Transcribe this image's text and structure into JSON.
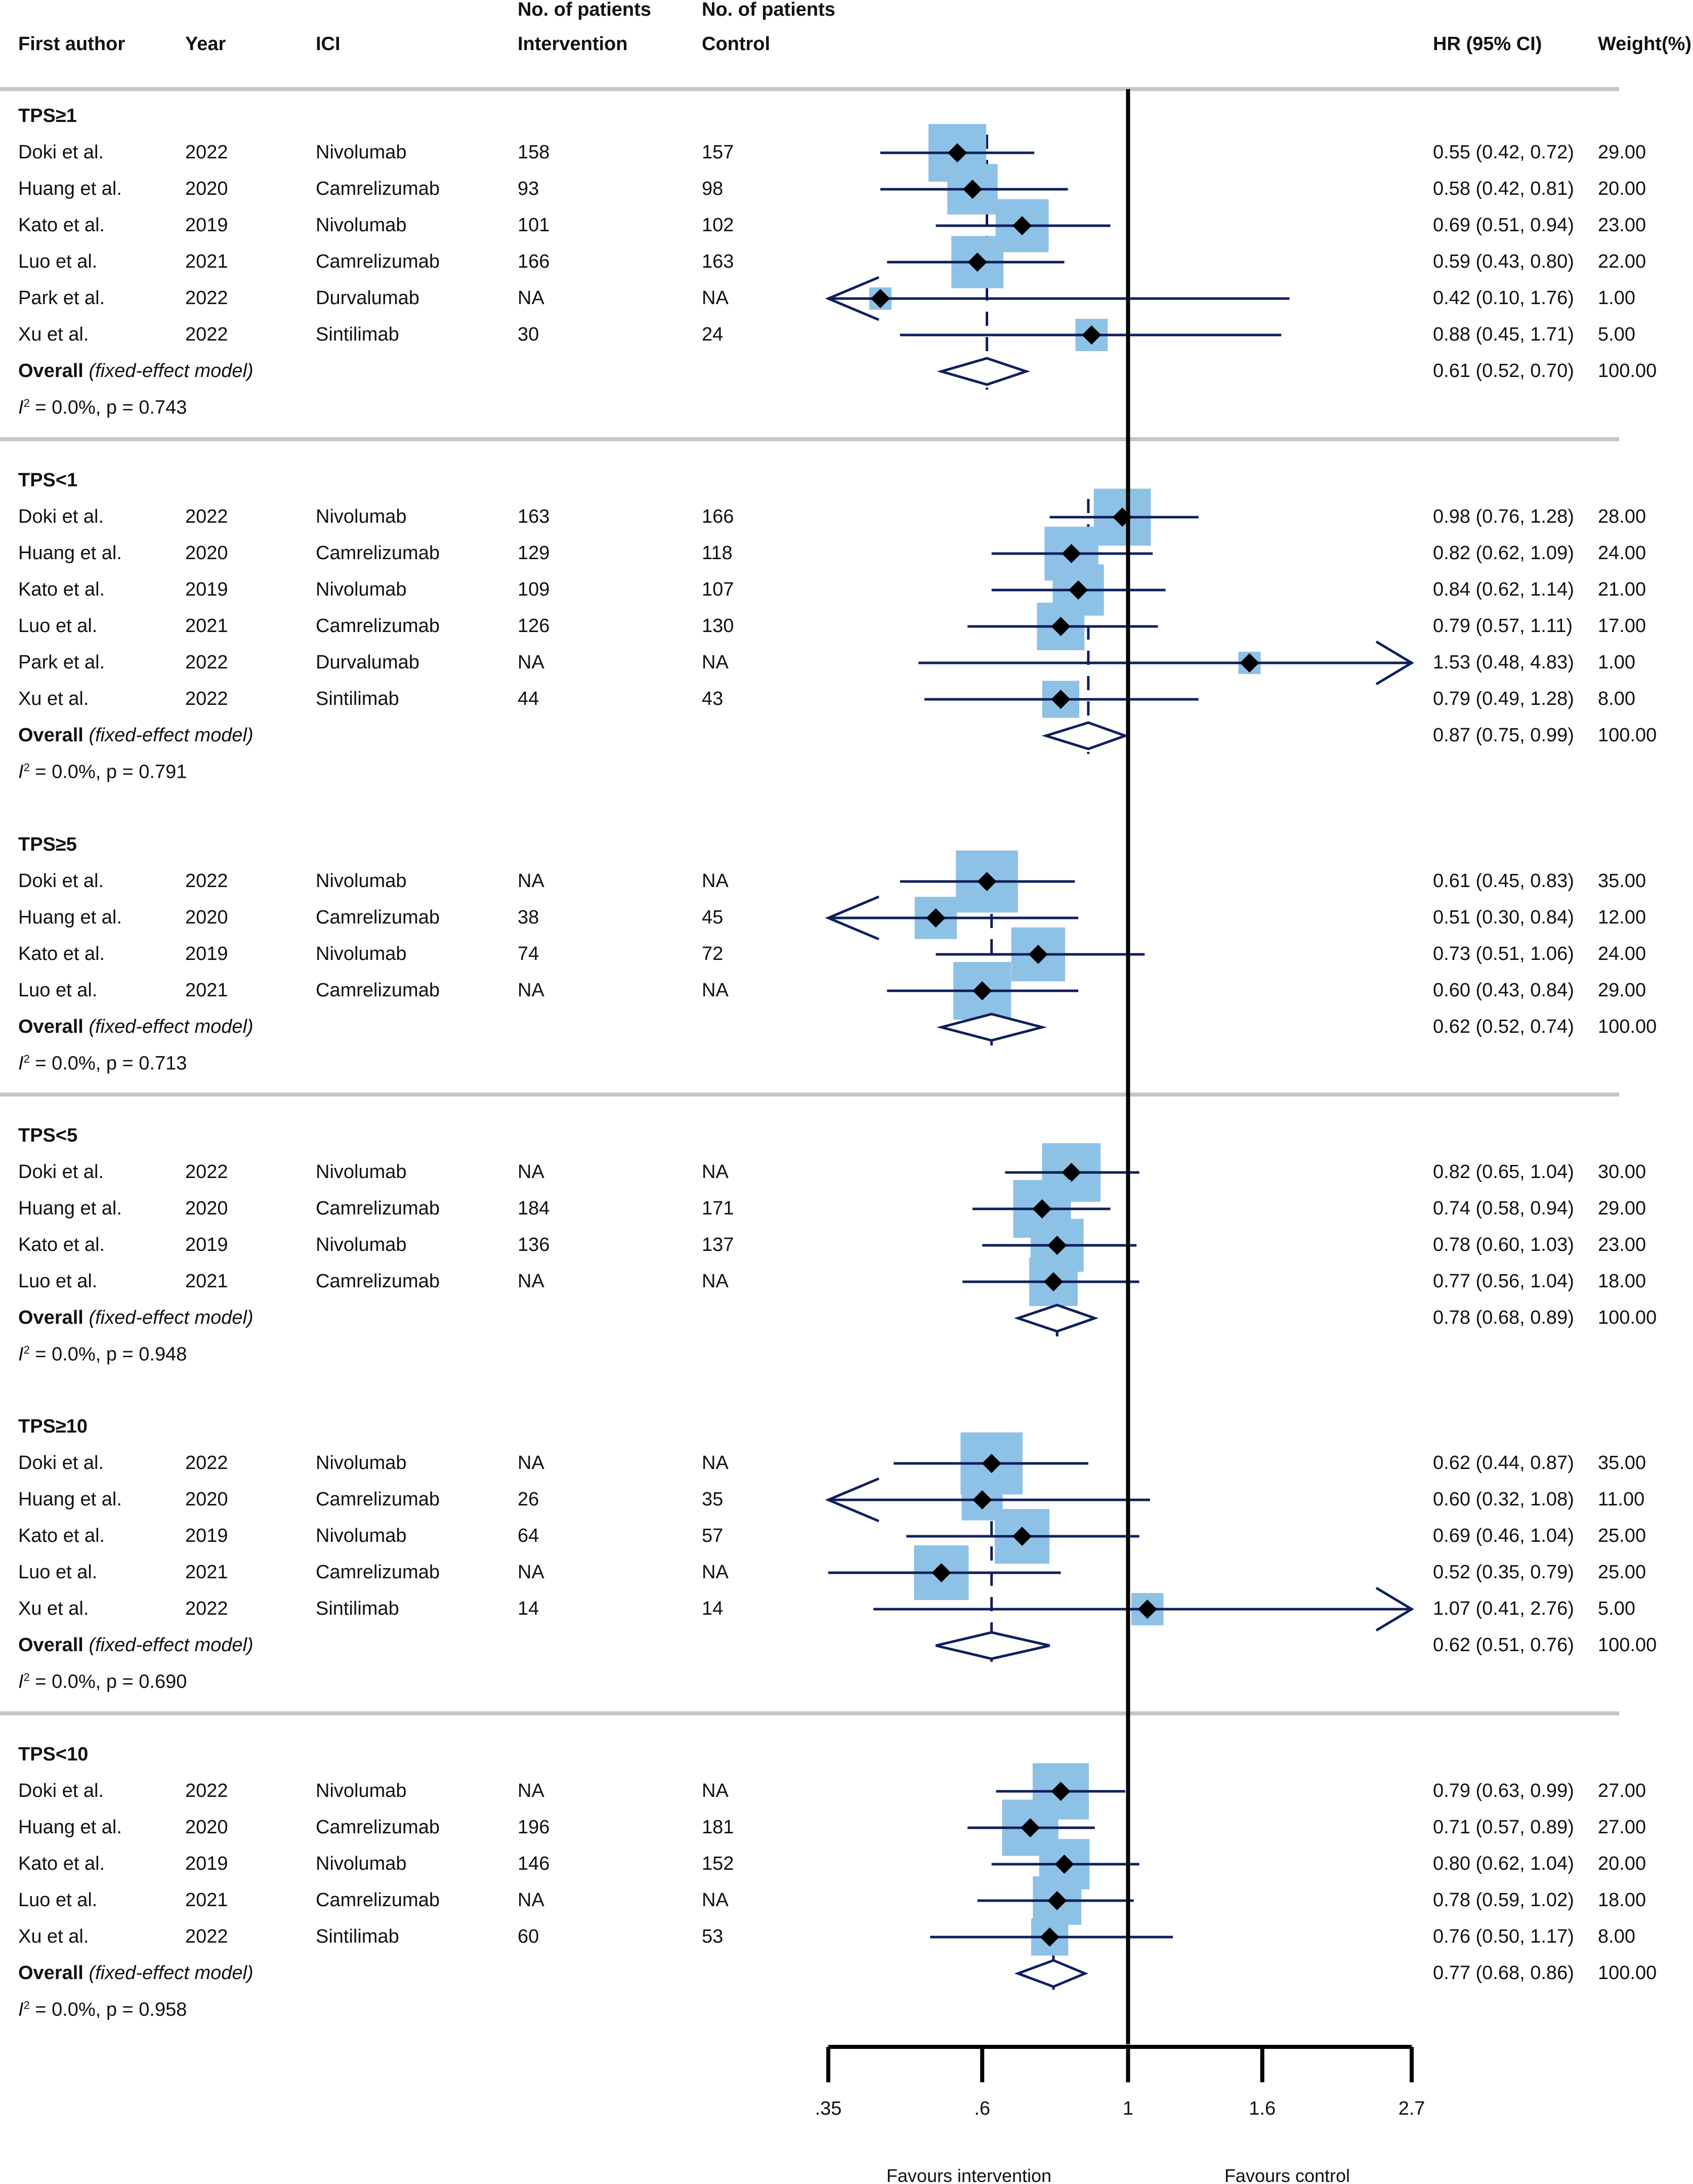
{
  "header": {
    "first_author": "First author",
    "year": "Year",
    "ici": "ICI",
    "intervention_top": "No. of patients",
    "intervention": "Intervention",
    "control_top": "No. of patients",
    "control": "Control",
    "hr": "HR (95% CI)",
    "weight": "Weight(%)"
  },
  "colors": {
    "line": "#0d1f5c",
    "box": "#8ec1e6",
    "separator": "#c6c6c6",
    "axis": "#000000"
  },
  "chart_data": {
    "type": "forest",
    "x_scale": "log",
    "xlim": [
      0.35,
      2.7
    ],
    "null_line": 1,
    "ticks": [
      {
        "value": 0.35,
        "label": ".35"
      },
      {
        "value": 0.6,
        "label": ".6"
      },
      {
        "value": 1,
        "label": "1"
      },
      {
        "value": 1.6,
        "label": "1.6"
      },
      {
        "value": 2.7,
        "label": "2.7"
      }
    ],
    "xlabel_left": "Favours intervention",
    "xlabel_right": "Favours control",
    "subgroups": [
      {
        "name": "TPS≥1",
        "studies": [
          {
            "author": "Doki et al.",
            "year": "2022",
            "ici": "Nivolumab",
            "n_int": "158",
            "n_ctrl": "157",
            "hr": 0.55,
            "lo": 0.42,
            "hi": 0.72,
            "ci_text": "0.55 (0.42, 0.72)",
            "weight": 29.0,
            "weight_text": "29.00"
          },
          {
            "author": "Huang et al.",
            "year": "2020",
            "ici": "Camrelizumab",
            "n_int": "93",
            "n_ctrl": "98",
            "hr": 0.58,
            "lo": 0.42,
            "hi": 0.81,
            "ci_text": "0.58 (0.42, 0.81)",
            "weight": 20.0,
            "weight_text": "20.00"
          },
          {
            "author": "Kato et al.",
            "year": "2019",
            "ici": "Nivolumab",
            "n_int": "101",
            "n_ctrl": "102",
            "hr": 0.69,
            "lo": 0.51,
            "hi": 0.94,
            "ci_text": "0.69 (0.51, 0.94)",
            "weight": 23.0,
            "weight_text": "23.00"
          },
          {
            "author": "Luo et al.",
            "year": "2021",
            "ici": "Camrelizumab",
            "n_int": "166",
            "n_ctrl": "163",
            "hr": 0.59,
            "lo": 0.43,
            "hi": 0.8,
            "ci_text": "0.59 (0.43, 0.80)",
            "weight": 22.0,
            "weight_text": "22.00"
          },
          {
            "author": "Park et al.",
            "year": "2022",
            "ici": "Durvalumab",
            "n_int": "NA",
            "n_ctrl": "NA",
            "hr": 0.42,
            "lo": 0.1,
            "hi": 1.76,
            "ci_text": "0.42 (0.10, 1.76)",
            "weight": 1.0,
            "weight_text": "1.00"
          },
          {
            "author": "Xu et al.",
            "year": "2022",
            "ici": "Sintilimab",
            "n_int": "30",
            "n_ctrl": "24",
            "hr": 0.88,
            "lo": 0.45,
            "hi": 1.71,
            "ci_text": "0.88 (0.45, 1.71)",
            "weight": 5.0,
            "weight_text": "5.00"
          }
        ],
        "overall": {
          "label": "Overall",
          "model": "(fixed-effect model)",
          "hr": 0.61,
          "lo": 0.52,
          "hi": 0.7,
          "ci_text": "0.61 (0.52, 0.70)",
          "weight_text": "100.00"
        },
        "het_value": " = 0.0%, p = 0.743"
      },
      {
        "name": "TPS<1",
        "studies": [
          {
            "author": "Doki et al.",
            "year": "2022",
            "ici": "Nivolumab",
            "n_int": "163",
            "n_ctrl": "166",
            "hr": 0.98,
            "lo": 0.76,
            "hi": 1.28,
            "ci_text": "0.98 (0.76, 1.28)",
            "weight": 28.0,
            "weight_text": "28.00"
          },
          {
            "author": "Huang et al.",
            "year": "2020",
            "ici": "Camrelizumab",
            "n_int": "129",
            "n_ctrl": "118",
            "hr": 0.82,
            "lo": 0.62,
            "hi": 1.09,
            "ci_text": "0.82 (0.62, 1.09)",
            "weight": 24.0,
            "weight_text": "24.00"
          },
          {
            "author": "Kato et al.",
            "year": "2019",
            "ici": "Nivolumab",
            "n_int": "109",
            "n_ctrl": "107",
            "hr": 0.84,
            "lo": 0.62,
            "hi": 1.14,
            "ci_text": "0.84 (0.62, 1.14)",
            "weight": 21.0,
            "weight_text": "21.00"
          },
          {
            "author": "Luo et al.",
            "year": "2021",
            "ici": "Camrelizumab",
            "n_int": "126",
            "n_ctrl": "130",
            "hr": 0.79,
            "lo": 0.57,
            "hi": 1.11,
            "ci_text": "0.79 (0.57, 1.11)",
            "weight": 17.0,
            "weight_text": "17.00"
          },
          {
            "author": "Park et al.",
            "year": "2022",
            "ici": "Durvalumab",
            "n_int": "NA",
            "n_ctrl": "NA",
            "hr": 1.53,
            "lo": 0.48,
            "hi": 4.83,
            "ci_text": "1.53 (0.48, 4.83)",
            "weight": 1.0,
            "weight_text": "1.00"
          },
          {
            "author": "Xu et al.",
            "year": "2022",
            "ici": "Sintilimab",
            "n_int": "44",
            "n_ctrl": "43",
            "hr": 0.79,
            "lo": 0.49,
            "hi": 1.28,
            "ci_text": "0.79 (0.49, 1.28)",
            "weight": 8.0,
            "weight_text": "8.00"
          }
        ],
        "overall": {
          "label": "Overall",
          "model": "(fixed-effect model)",
          "hr": 0.87,
          "lo": 0.75,
          "hi": 0.99,
          "ci_text": "0.87 (0.75, 0.99)",
          "weight_text": "100.00"
        },
        "het_value": " = 0.0%, p = 0.791"
      },
      {
        "name": "TPS≥5",
        "studies": [
          {
            "author": "Doki et al.",
            "year": "2022",
            "ici": "Nivolumab",
            "n_int": "NA",
            "n_ctrl": "NA",
            "hr": 0.61,
            "lo": 0.45,
            "hi": 0.83,
            "ci_text": "0.61 (0.45, 0.83)",
            "weight": 35.0,
            "weight_text": "35.00"
          },
          {
            "author": "Huang et al.",
            "year": "2020",
            "ici": "Camrelizumab",
            "n_int": "38",
            "n_ctrl": "45",
            "hr": 0.51,
            "lo": 0.3,
            "hi": 0.84,
            "ci_text": "0.51 (0.30, 0.84)",
            "weight": 12.0,
            "weight_text": "12.00"
          },
          {
            "author": "Kato et al.",
            "year": "2019",
            "ici": "Nivolumab",
            "n_int": "74",
            "n_ctrl": "72",
            "hr": 0.73,
            "lo": 0.51,
            "hi": 1.06,
            "ci_text": "0.73 (0.51, 1.06)",
            "weight": 24.0,
            "weight_text": "24.00"
          },
          {
            "author": "Luo et al.",
            "year": "2021",
            "ici": "Camrelizumab",
            "n_int": "NA",
            "n_ctrl": "NA",
            "hr": 0.6,
            "lo": 0.43,
            "hi": 0.84,
            "ci_text": "0.60 (0.43, 0.84)",
            "weight": 29.0,
            "weight_text": "29.00"
          }
        ],
        "overall": {
          "label": "Overall",
          "model": "(fixed-effect model)",
          "hr": 0.62,
          "lo": 0.52,
          "hi": 0.74,
          "ci_text": "0.62 (0.52, 0.74)",
          "weight_text": "100.00"
        },
        "het_value": " = 0.0%, p = 0.713"
      },
      {
        "name": "TPS<5",
        "studies": [
          {
            "author": "Doki et al.",
            "year": "2022",
            "ici": "Nivolumab",
            "n_int": "NA",
            "n_ctrl": "NA",
            "hr": 0.82,
            "lo": 0.65,
            "hi": 1.04,
            "ci_text": "0.82 (0.65, 1.04)",
            "weight": 30.0,
            "weight_text": "30.00"
          },
          {
            "author": "Huang et al.",
            "year": "2020",
            "ici": "Camrelizumab",
            "n_int": "184",
            "n_ctrl": "171",
            "hr": 0.74,
            "lo": 0.58,
            "hi": 0.94,
            "ci_text": "0.74 (0.58, 0.94)",
            "weight": 29.0,
            "weight_text": "29.00"
          },
          {
            "author": "Kato et al.",
            "year": "2019",
            "ici": "Nivolumab",
            "n_int": "136",
            "n_ctrl": "137",
            "hr": 0.78,
            "lo": 0.6,
            "hi": 1.03,
            "ci_text": "0.78 (0.60, 1.03)",
            "weight": 23.0,
            "weight_text": "23.00"
          },
          {
            "author": "Luo et al.",
            "year": "2021",
            "ici": "Camrelizumab",
            "n_int": "NA",
            "n_ctrl": "NA",
            "hr": 0.77,
            "lo": 0.56,
            "hi": 1.04,
            "ci_text": "0.77 (0.56, 1.04)",
            "weight": 18.0,
            "weight_text": "18.00"
          }
        ],
        "overall": {
          "label": "Overall",
          "model": "(fixed-effect model)",
          "hr": 0.78,
          "lo": 0.68,
          "hi": 0.89,
          "ci_text": "0.78 (0.68, 0.89)",
          "weight_text": "100.00"
        },
        "het_value": " = 0.0%, p = 0.948"
      },
      {
        "name": "TPS≥10",
        "studies": [
          {
            "author": "Doki et al.",
            "year": "2022",
            "ici": "Nivolumab",
            "n_int": "NA",
            "n_ctrl": "NA",
            "hr": 0.62,
            "lo": 0.44,
            "hi": 0.87,
            "ci_text": "0.62 (0.44, 0.87)",
            "weight": 35.0,
            "weight_text": "35.00"
          },
          {
            "author": "Huang et al.",
            "year": "2020",
            "ici": "Camrelizumab",
            "n_int": "26",
            "n_ctrl": "35",
            "hr": 0.6,
            "lo": 0.32,
            "hi": 1.08,
            "ci_text": "0.60 (0.32, 1.08)",
            "weight": 11.0,
            "weight_text": "11.00"
          },
          {
            "author": "Kato et al.",
            "year": "2019",
            "ici": "Nivolumab",
            "n_int": "64",
            "n_ctrl": "57",
            "hr": 0.69,
            "lo": 0.46,
            "hi": 1.04,
            "ci_text": "0.69 (0.46, 1.04)",
            "weight": 25.0,
            "weight_text": "25.00"
          },
          {
            "author": "Luo et al.",
            "year": "2021",
            "ici": "Camrelizumab",
            "n_int": "NA",
            "n_ctrl": "NA",
            "hr": 0.52,
            "lo": 0.35,
            "hi": 0.79,
            "ci_text": "0.52 (0.35, 0.79)",
            "weight": 25.0,
            "weight_text": "25.00"
          },
          {
            "author": "Xu et al.",
            "year": "2022",
            "ici": "Sintilimab",
            "n_int": "14",
            "n_ctrl": "14",
            "hr": 1.07,
            "lo": 0.41,
            "hi": 2.76,
            "ci_text": "1.07 (0.41, 2.76)",
            "weight": 5.0,
            "weight_text": "5.00"
          }
        ],
        "overall": {
          "label": "Overall",
          "model": "(fixed-effect model)",
          "hr": 0.62,
          "lo": 0.51,
          "hi": 0.76,
          "ci_text": "0.62 (0.51, 0.76)",
          "weight_text": "100.00"
        },
        "het_value": " =  0.0%, p = 0.690"
      },
      {
        "name": "TPS<10",
        "studies": [
          {
            "author": "Doki et al.",
            "year": "2022",
            "ici": "Nivolumab",
            "n_int": "NA",
            "n_ctrl": "NA",
            "hr": 0.79,
            "lo": 0.63,
            "hi": 0.99,
            "ci_text": "0.79 (0.63, 0.99)",
            "weight": 27.0,
            "weight_text": "27.00"
          },
          {
            "author": "Huang et al.",
            "year": "2020",
            "ici": "Camrelizumab",
            "n_int": "196",
            "n_ctrl": "181",
            "hr": 0.71,
            "lo": 0.57,
            "hi": 0.89,
            "ci_text": "0.71 (0.57, 0.89)",
            "weight": 27.0,
            "weight_text": "27.00"
          },
          {
            "author": "Kato et al.",
            "year": "2019",
            "ici": "Nivolumab",
            "n_int": "146",
            "n_ctrl": "152",
            "hr": 0.8,
            "lo": 0.62,
            "hi": 1.04,
            "ci_text": "0.80 (0.62, 1.04)",
            "weight": 20.0,
            "weight_text": "20.00"
          },
          {
            "author": "Luo et al.",
            "year": "2021",
            "ici": "Camrelizumab",
            "n_int": "NA",
            "n_ctrl": "NA",
            "hr": 0.78,
            "lo": 0.59,
            "hi": 1.02,
            "ci_text": "0.78 (0.59, 1.02)",
            "weight": 18.0,
            "weight_text": "18.00"
          },
          {
            "author": "Xu et al.",
            "year": "2022",
            "ici": "Sintilimab",
            "n_int": "60",
            "n_ctrl": "53",
            "hr": 0.76,
            "lo": 0.5,
            "hi": 1.17,
            "ci_text": "0.76 (0.50, 1.17)",
            "weight": 8.0,
            "weight_text": "8.00"
          }
        ],
        "overall": {
          "label": "Overall",
          "model": "(fixed-effect model)",
          "hr": 0.77,
          "lo": 0.68,
          "hi": 0.86,
          "ci_text": "0.77 (0.68, 0.86)",
          "weight_text": "100.00"
        },
        "het_value": " =  0.0%, p = 0.958"
      }
    ]
  }
}
